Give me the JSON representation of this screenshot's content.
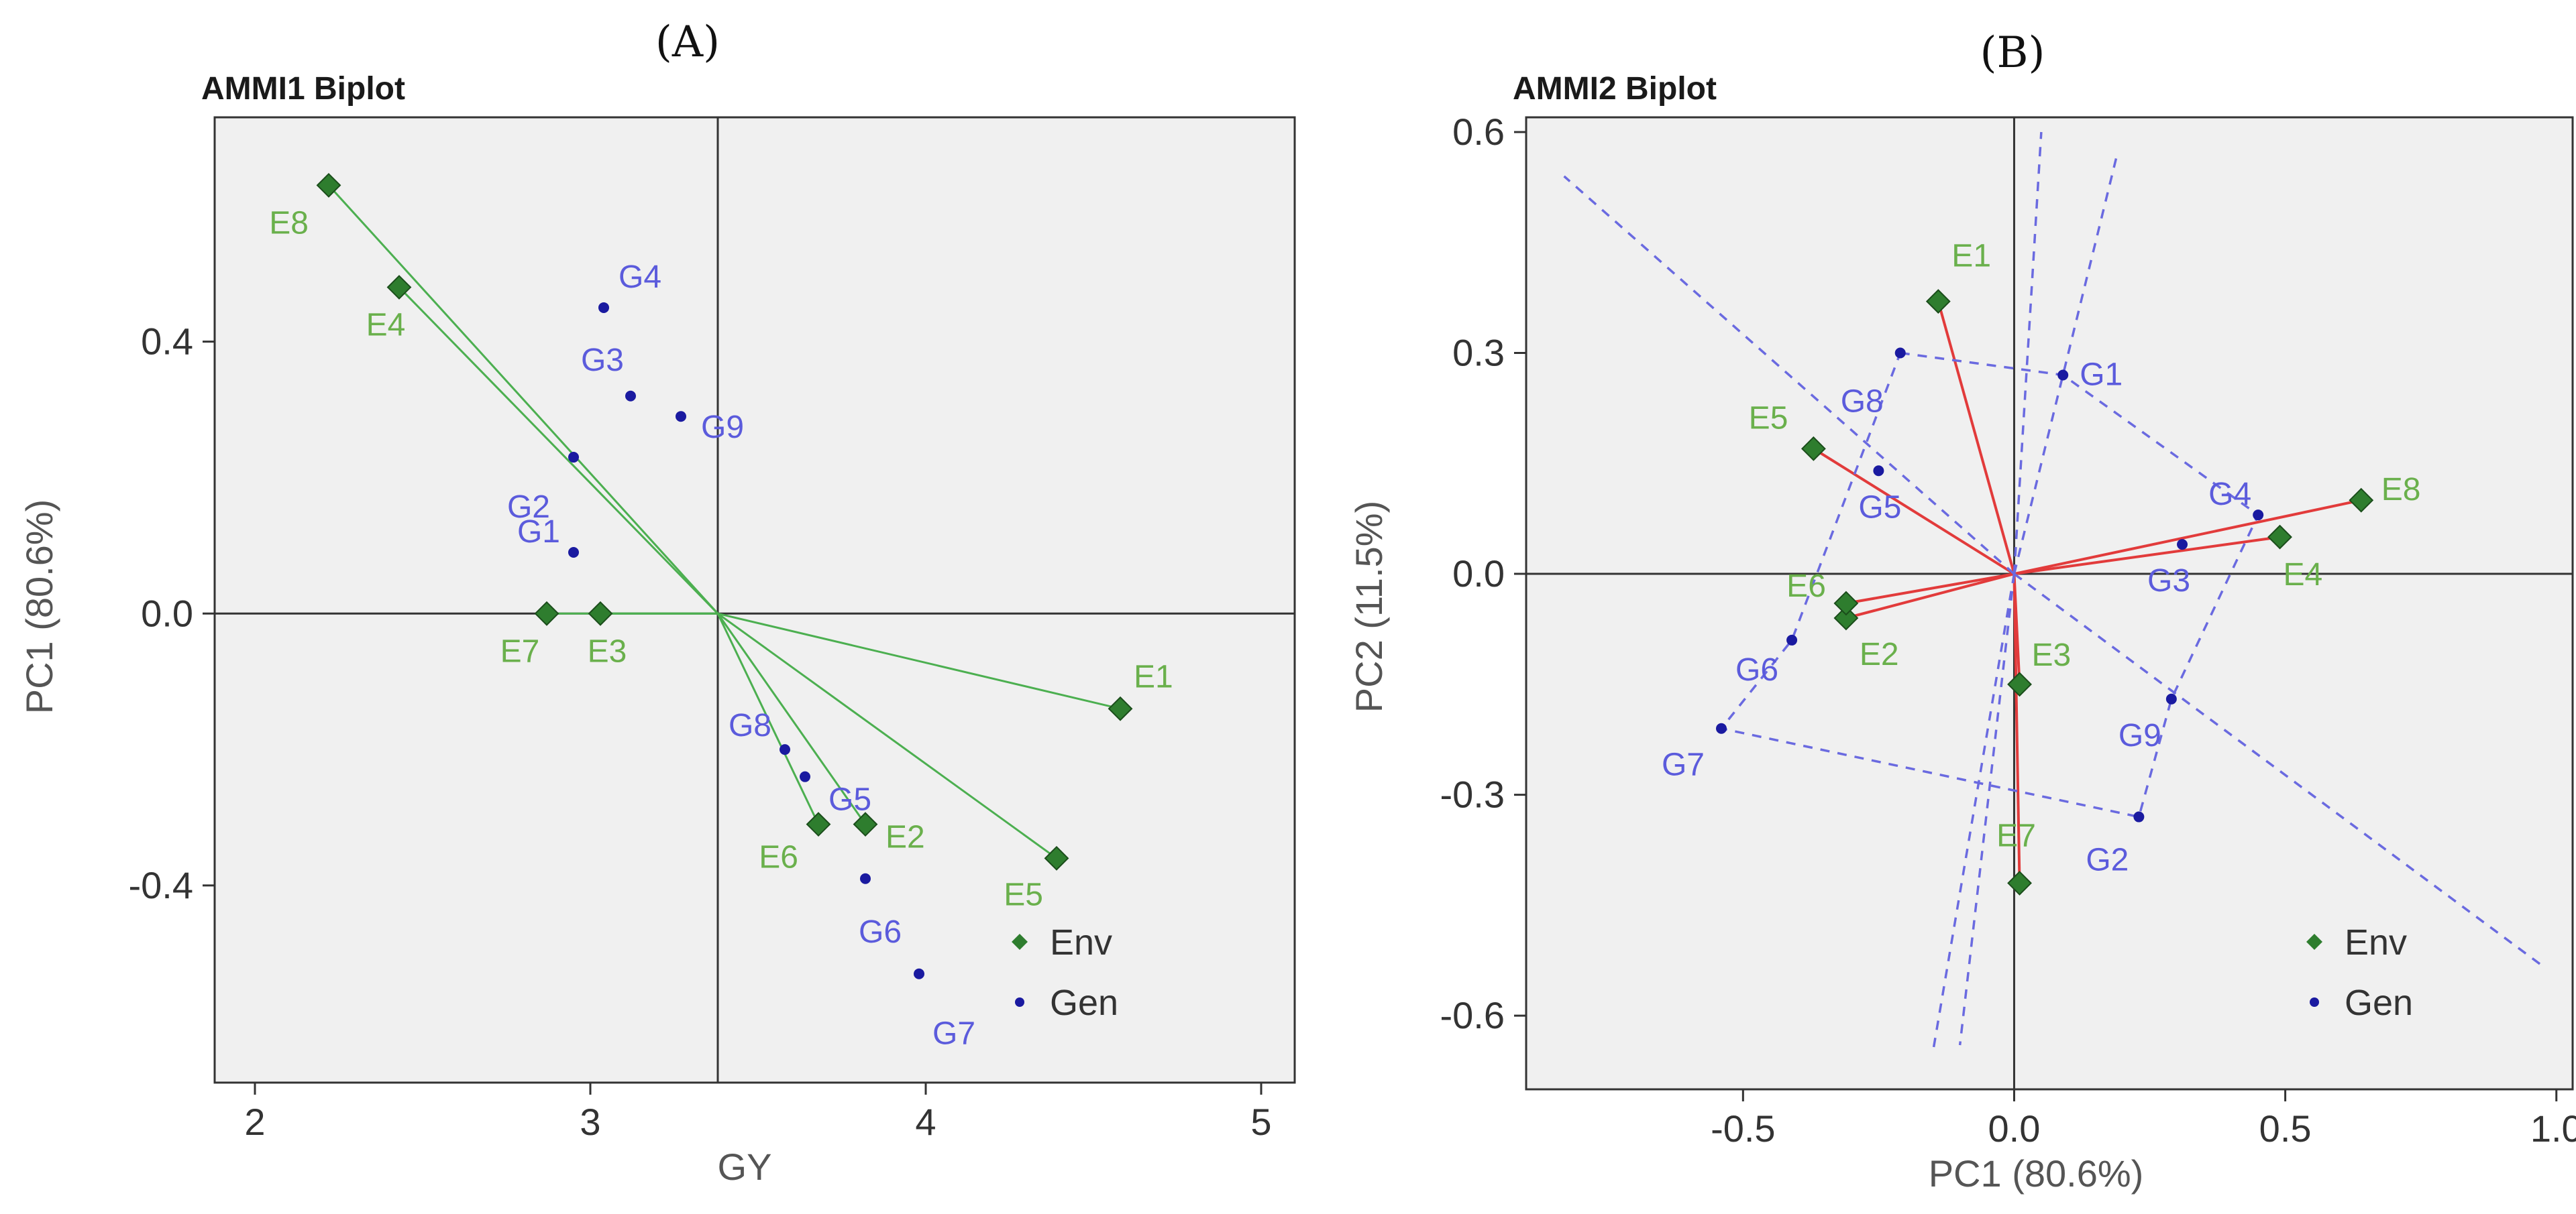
{
  "colors": {
    "env": "#2e7d2e",
    "env_label": "#6ab04c",
    "env_line": "#4caf50",
    "gen": "#1a1aa0",
    "gen_label": "#5b5bdc",
    "red_line": "#e23b3b",
    "hull": "#6a6ae0",
    "panel_bg": "#f0f0f0"
  },
  "chart_data": [
    {
      "type": "scatter",
      "panel_label": "(A)",
      "title": "AMMI1 Biplot",
      "xlabel": "GY",
      "ylabel": "PC1 (80.6%)",
      "xlim": [
        1.88,
        5.1
      ],
      "ylim": [
        -0.69,
        0.73
      ],
      "xticks": [
        2,
        3,
        4,
        5
      ],
      "xtick_labels": [
        "2",
        "3",
        "4",
        "5"
      ],
      "yticks": [
        -0.4,
        0.0,
        0.4
      ],
      "ytick_labels": [
        "-0.4",
        "0.0",
        "0.4"
      ],
      "ref_x": 3.38,
      "ref_y": 0.0,
      "env_points": [
        {
          "name": "E1",
          "x": 4.58,
          "y": -0.14
        },
        {
          "name": "E2",
          "x": 3.82,
          "y": -0.31
        },
        {
          "name": "E3",
          "x": 3.03,
          "y": 0.0
        },
        {
          "name": "E4",
          "x": 2.43,
          "y": 0.48
        },
        {
          "name": "E5",
          "x": 4.39,
          "y": -0.36
        },
        {
          "name": "E6",
          "x": 3.68,
          "y": -0.31
        },
        {
          "name": "E7",
          "x": 2.87,
          "y": 0.0
        },
        {
          "name": "E8",
          "x": 2.22,
          "y": 0.63
        }
      ],
      "gen_points": [
        {
          "name": "G1",
          "x": 2.95,
          "y": 0.09
        },
        {
          "name": "G2",
          "x": 2.95,
          "y": 0.23
        },
        {
          "name": "G3",
          "x": 3.12,
          "y": 0.32
        },
        {
          "name": "G4",
          "x": 3.04,
          "y": 0.45
        },
        {
          "name": "G5",
          "x": 3.64,
          "y": -0.24
        },
        {
          "name": "G6",
          "x": 3.82,
          "y": -0.39
        },
        {
          "name": "G7",
          "x": 3.98,
          "y": -0.53
        },
        {
          "name": "G8",
          "x": 3.58,
          "y": -0.2
        },
        {
          "name": "G9",
          "x": 3.27,
          "y": 0.29
        }
      ],
      "legend": [
        {
          "label": "Env"
        },
        {
          "label": "Gen"
        }
      ],
      "legend_position": "bottom-right"
    },
    {
      "type": "scatter",
      "panel_label": "(B)",
      "title": "AMMI2 Biplot",
      "xlabel": "PC1 (80.6%)",
      "ylabel": "PC2 (11.5%)",
      "xlim": [
        -0.9,
        1.03
      ],
      "ylim": [
        -0.7,
        0.62
      ],
      "xticks": [
        -0.5,
        0.0,
        0.5,
        1.0
      ],
      "xtick_labels": [
        "-0.5",
        "0.0",
        "0.5",
        "1.0"
      ],
      "yticks": [
        -0.6,
        -0.3,
        0.0,
        0.3,
        0.6
      ],
      "ytick_labels": [
        "-0.6",
        "-0.3",
        "0.0",
        "0.3",
        "0.6"
      ],
      "ref_x": 0.0,
      "ref_y": 0.0,
      "env_points": [
        {
          "name": "E1",
          "x": -0.14,
          "y": 0.37
        },
        {
          "name": "E2",
          "x": -0.31,
          "y": -0.06
        },
        {
          "name": "E3",
          "x": 0.01,
          "y": -0.15
        },
        {
          "name": "E4",
          "x": 0.49,
          "y": 0.05
        },
        {
          "name": "E5",
          "x": -0.37,
          "y": 0.17
        },
        {
          "name": "E6",
          "x": -0.31,
          "y": -0.04
        },
        {
          "name": "E7",
          "x": 0.01,
          "y": -0.42
        },
        {
          "name": "E8",
          "x": 0.64,
          "y": 0.1
        }
      ],
      "gen_points": [
        {
          "name": "G1",
          "x": 0.09,
          "y": 0.27
        },
        {
          "name": "G2",
          "x": 0.23,
          "y": -0.33
        },
        {
          "name": "G3",
          "x": 0.31,
          "y": 0.04
        },
        {
          "name": "G4",
          "x": 0.45,
          "y": 0.08
        },
        {
          "name": "G5",
          "x": -0.25,
          "y": 0.14
        },
        {
          "name": "G6",
          "x": -0.41,
          "y": -0.09
        },
        {
          "name": "G7",
          "x": -0.54,
          "y": -0.21
        },
        {
          "name": "G8",
          "x": -0.21,
          "y": 0.3
        },
        {
          "name": "G9",
          "x": 0.29,
          "y": -0.17
        }
      ],
      "hull_order": [
        "G8",
        "G1",
        "G4",
        "G9",
        "G2",
        "G7",
        "G6",
        "G8"
      ],
      "sector_lines": [
        {
          "from": [
            0,
            0
          ],
          "to": [
            -0.83,
            0.54
          ]
        },
        {
          "from": [
            0,
            0
          ],
          "to": [
            0.97,
            -0.53
          ]
        },
        {
          "from": [
            0,
            0
          ],
          "to": [
            0.05,
            0.6
          ]
        },
        {
          "from": [
            0,
            0
          ],
          "to": [
            0.19,
            0.57
          ]
        },
        {
          "from": [
            0,
            0
          ],
          "to": [
            -0.1,
            -0.64
          ]
        },
        {
          "from": [
            0,
            0
          ],
          "to": [
            -0.15,
            -0.65
          ]
        }
      ],
      "legend": [
        {
          "label": "Env"
        },
        {
          "label": "Gen"
        }
      ],
      "legend_position": "bottom-right"
    }
  ]
}
